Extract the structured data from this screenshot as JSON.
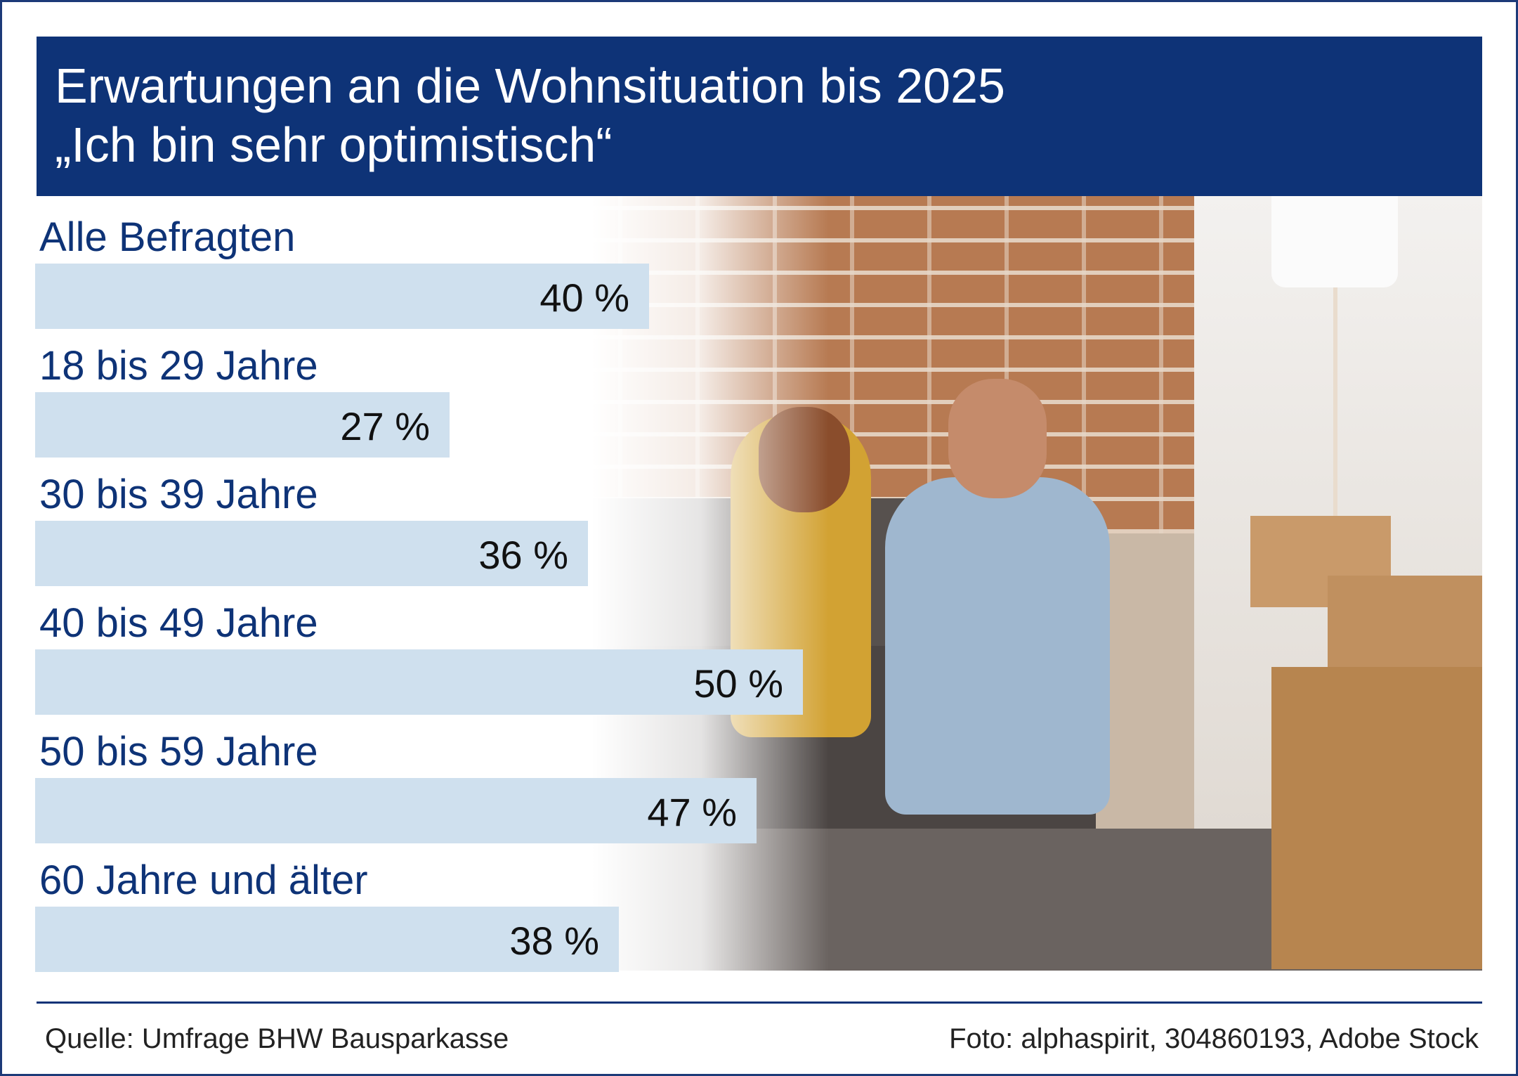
{
  "header": {
    "title_line1": "Erwartungen an die Wohnsituation bis 2025",
    "title_line2": "„Ich bin sehr optimistisch“"
  },
  "chart_data": {
    "type": "bar",
    "orientation": "horizontal",
    "title": "Erwartungen an die Wohnsituation bis 2025 „Ich bin sehr optimistisch“",
    "categories": [
      "Alle Befragten",
      "18 bis 29 Jahre",
      "30 bis 39 Jahre",
      "40 bis 49 Jahre",
      "50 bis 59 Jahre",
      "60 Jahre und älter"
    ],
    "values": [
      40,
      27,
      36,
      50,
      47,
      38
    ],
    "value_labels": [
      "40 %",
      "27 %",
      "36 %",
      "50 %",
      "47 %",
      "38 %"
    ],
    "unit": "%",
    "grid": false,
    "colors": {
      "bar": "#cfe0ee",
      "header": "#0e3377",
      "label": "#0e3377"
    }
  },
  "footer": {
    "source": "Quelle: Umfrage BHW Bausparkasse",
    "credit": "Foto: alphaspirit, 304860193, Adobe Stock"
  }
}
